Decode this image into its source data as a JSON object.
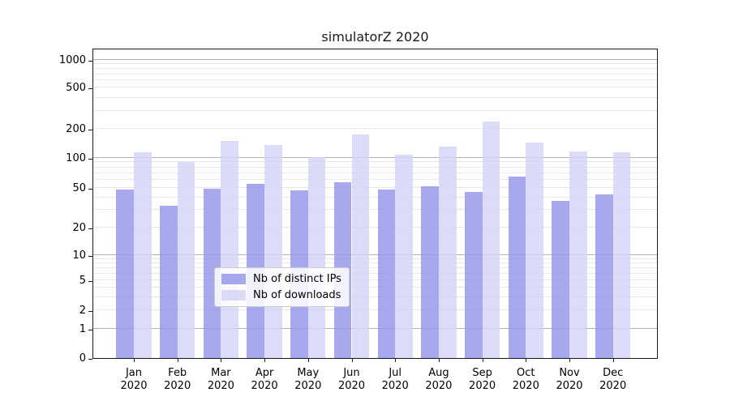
{
  "chart_data": {
    "type": "bar",
    "title": "simulatorZ 2020",
    "categories": [
      "Jan",
      "Feb",
      "Mar",
      "Apr",
      "May",
      "Jun",
      "Jul",
      "Aug",
      "Sep",
      "Oct",
      "Nov",
      "Dec"
    ],
    "category_year": "2020",
    "series": [
      {
        "name": "Nb of distinct IPs",
        "color_hex": "#9292eb",
        "alpha": 0.8,
        "values": [
          48,
          33,
          49,
          55,
          47,
          57,
          48,
          52,
          45,
          65,
          37,
          43
        ]
      },
      {
        "name": "Nb of downloads",
        "color_hex": "#d3d3f6",
        "alpha": 0.8,
        "values": [
          113,
          91,
          150,
          135,
          102,
          175,
          108,
          130,
          235,
          145,
          117,
          113
        ]
      }
    ],
    "yscale": "symlog",
    "y_ticks": [
      0,
      1,
      2,
      5,
      10,
      20,
      50,
      100,
      200,
      500,
      1000
    ],
    "ylim": [
      0,
      1400
    ],
    "grid": {
      "orientation": "horizontal",
      "major_color": "#b3b3b3",
      "minor_color": "#e7e7e7"
    },
    "legend": {
      "position": "lower center",
      "items": [
        "Nb of distinct IPs",
        "Nb of downloads"
      ]
    }
  }
}
